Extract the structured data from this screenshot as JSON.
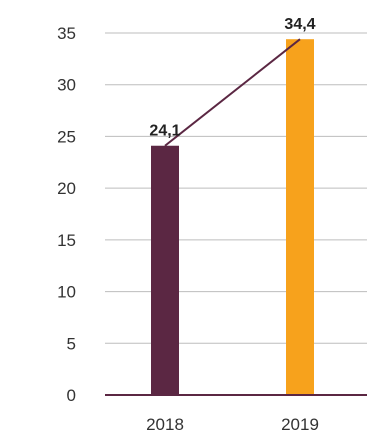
{
  "chart_data": {
    "type": "bar",
    "categories": [
      "2018",
      "2019"
    ],
    "values": [
      24.1,
      34.4
    ],
    "data_labels": [
      "24,1",
      "34,4"
    ],
    "bar_colors": [
      "#5b2743",
      "#f7a21c"
    ],
    "trend_line_color": "#5b2743",
    "title": "",
    "xlabel": "",
    "ylabel": "",
    "ylim": [
      0,
      35
    ],
    "yticks": [
      0,
      5,
      10,
      15,
      20,
      25,
      30,
      35
    ],
    "ytick_labels": [
      "0",
      "5",
      "10",
      "15",
      "20",
      "25",
      "30",
      "35"
    ],
    "grid": true,
    "legend": "none"
  }
}
